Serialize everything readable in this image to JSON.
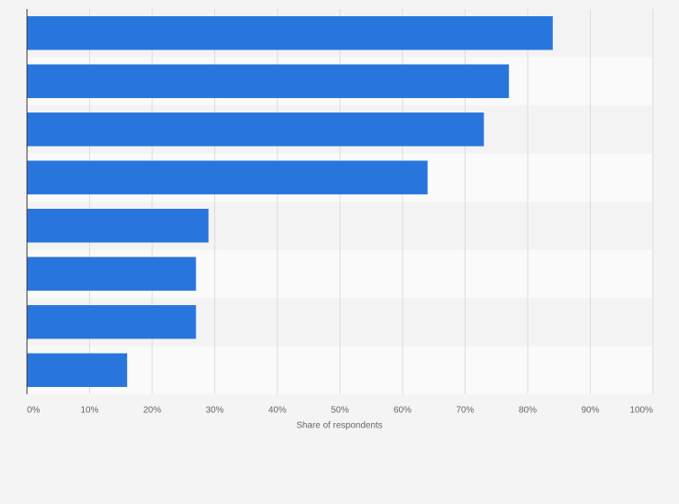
{
  "chart_data": {
    "type": "barh",
    "categories": [
      null,
      null,
      null,
      null,
      null,
      null,
      null,
      null
    ],
    "values": [
      84,
      77,
      73,
      64,
      29,
      27,
      27,
      16
    ],
    "color": "#2876dd",
    "xlabel": "Share of respondents",
    "xlim": [
      0,
      100
    ],
    "xticks": [
      {
        "value": 0,
        "label": "0%"
      },
      {
        "value": 10,
        "label": "10%"
      },
      {
        "value": 20,
        "label": "20%"
      },
      {
        "value": 30,
        "label": "30%"
      },
      {
        "value": 40,
        "label": "40%"
      },
      {
        "value": 50,
        "label": "50%"
      },
      {
        "value": 60,
        "label": "60%"
      },
      {
        "value": 70,
        "label": "70%"
      },
      {
        "value": 80,
        "label": "80%"
      },
      {
        "value": 90,
        "label": "90%"
      },
      {
        "value": 100,
        "label": "100%"
      }
    ],
    "grid": true
  }
}
